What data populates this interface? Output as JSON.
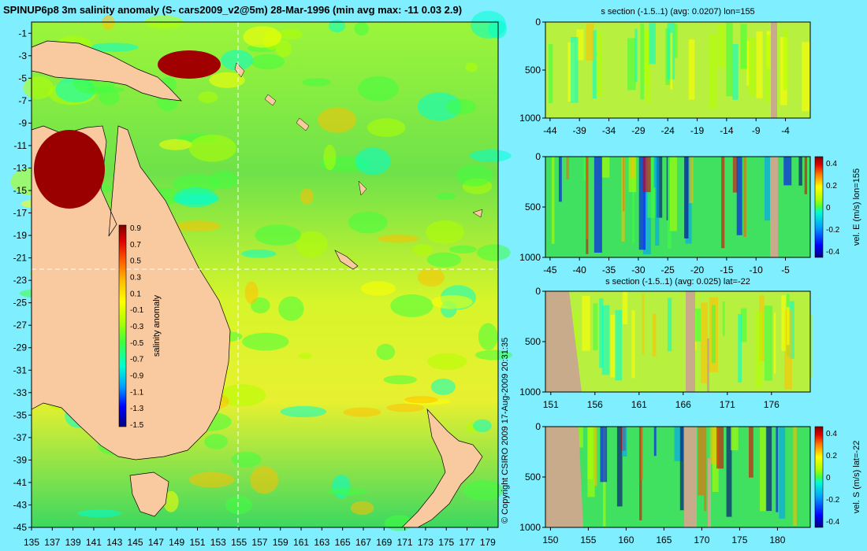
{
  "colors": {
    "background": "#7fefff",
    "land": "#f9c9a0",
    "section_land": "#c8ab8a",
    "colormap": [
      "#000080",
      "#0000ff",
      "#00a0ff",
      "#00ffd0",
      "#40ff40",
      "#b0ff00",
      "#ffff00",
      "#ffc000",
      "#ff6000",
      "#e00000",
      "#800000"
    ]
  },
  "chart_data": [
    {
      "type": "heatmap",
      "title": "SPINUP6p8 3m salinity anomaly (S- cars2009_v2@5m) 28-Mar-1996 (min avg max: -11 0.03 2.9)",
      "variable": "salinity anomaly",
      "stats": {
        "min": -11,
        "avg": 0.03,
        "max": 2.9
      },
      "date": "28-Mar-1996",
      "xlim": [
        135,
        180
      ],
      "ylim": [
        -45,
        0
      ],
      "x_ticks": [
        135,
        137,
        139,
        141,
        143,
        145,
        147,
        149,
        151,
        153,
        155,
        157,
        159,
        161,
        163,
        165,
        167,
        169,
        171,
        173,
        175,
        177,
        179
      ],
      "y_ticks": [
        -1,
        -3,
        -5,
        -7,
        -9,
        -11,
        -13,
        -15,
        -17,
        -19,
        -21,
        -23,
        -25,
        -27,
        -29,
        -31,
        -33,
        -35,
        -37,
        -39,
        -41,
        -43,
        -45
      ],
      "colorbar": {
        "label": "salinity anomaly",
        "range": [
          -1.5,
          0.9
        ],
        "ticks": [
          "0.9",
          "0.7",
          "0.5",
          "0.3",
          "0.1",
          "-0.1",
          "-0.3",
          "-0.5",
          "-0.7",
          "-0.9",
          "-1.1",
          "-1.3",
          "-1.5"
        ]
      },
      "crosshair": {
        "lon": 155,
        "lat": -22
      }
    },
    {
      "type": "heatmap",
      "title": "s section (-1.5..1) (avg: 0.0207) lon=155",
      "variable": "salinity anomaly",
      "section": "lon=155",
      "range": [
        -1.5,
        1
      ],
      "avg": 0.0207,
      "x_ticks": [
        "-44",
        "-39",
        "-34",
        "-29",
        "-24",
        "-19",
        "-14",
        "-9",
        "-4"
      ],
      "y_ticks": [
        "0",
        "500",
        "1000"
      ]
    },
    {
      "type": "heatmap",
      "title": "",
      "variable": "vel. E (m/s)",
      "section": "lon=155",
      "x_ticks": [
        "-45",
        "-40",
        "-35",
        "-30",
        "-25",
        "-20",
        "-15",
        "-10",
        "-5"
      ],
      "y_ticks": [
        "0",
        "500",
        "1000"
      ],
      "colorbar": {
        "label": "vel. E (m/s) lon=155",
        "ticks": [
          "0.4",
          "0.2",
          "0",
          "-0.2",
          "-0.4"
        ],
        "range": [
          -0.4,
          0.4
        ]
      }
    },
    {
      "type": "heatmap",
      "title": "s section (-1.5..1) (avg: 0.025) lat=-22",
      "variable": "salinity anomaly",
      "section": "lat=-22",
      "range": [
        -1.5,
        1
      ],
      "avg": 0.025,
      "x_ticks": [
        "151",
        "156",
        "161",
        "166",
        "171",
        "176"
      ],
      "y_ticks": [
        "0",
        "500",
        "1000"
      ]
    },
    {
      "type": "heatmap",
      "title": "",
      "variable": "vel. S (m/s)",
      "section": "lat=-22",
      "x_ticks": [
        "150",
        "155",
        "160",
        "165",
        "170",
        "175",
        "180"
      ],
      "y_ticks": [
        "0",
        "500",
        "1000"
      ],
      "colorbar": {
        "label": "vel. S (m/s) lat=-22",
        "ticks": [
          "0.4",
          "0.2",
          "0",
          "-0.2",
          "-0.4"
        ],
        "range": [
          -0.4,
          0.4
        ]
      }
    }
  ],
  "copyright": "© Copyright CSIRO 2009   17-Aug-2009 20:31:35"
}
